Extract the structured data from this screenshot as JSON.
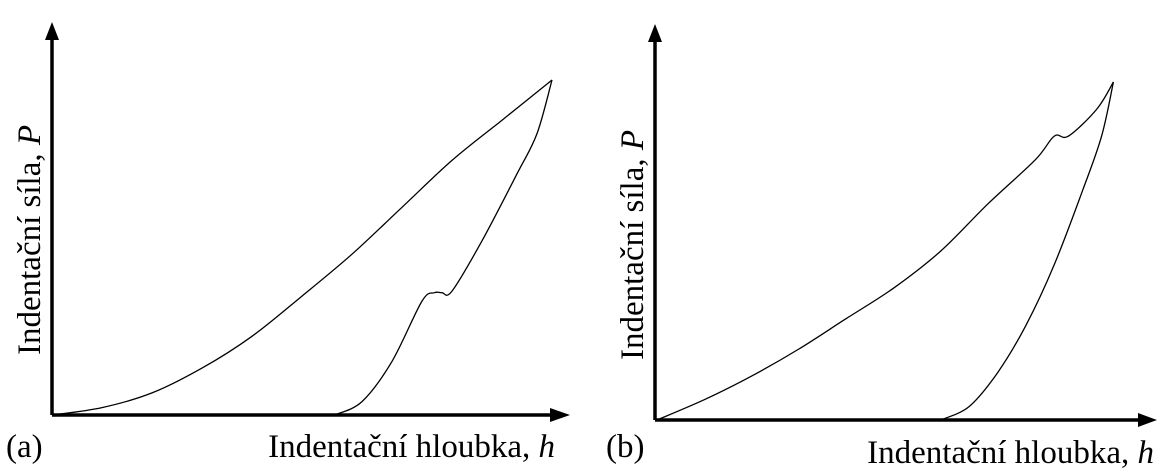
{
  "chart_data": [
    {
      "type": "line",
      "panel_label": "(a)",
      "xlabel_text": "Indentační hloubka, ",
      "xlabel_var": "h",
      "ylabel_text": "Indentační síla, ",
      "ylabel_var": "P",
      "xlim": [
        0,
        1
      ],
      "ylim": [
        0,
        1
      ],
      "grid": false,
      "series": [
        {
          "role": "loading",
          "points": [
            [
              0,
              0
            ],
            [
              0.1,
              0.022
            ],
            [
              0.2,
              0.066
            ],
            [
              0.3,
              0.14
            ],
            [
              0.4,
              0.235
            ],
            [
              0.5,
              0.355
            ],
            [
              0.6,
              0.48
            ],
            [
              0.7,
              0.62
            ],
            [
              0.8,
              0.76
            ],
            [
              0.9,
              0.88
            ],
            [
              1,
              1
            ]
          ]
        },
        {
          "role": "unloading",
          "points": [
            [
              0.565,
              0
            ],
            [
              0.62,
              0.04
            ],
            [
              0.68,
              0.16
            ],
            [
              0.74,
              0.34
            ],
            [
              0.765,
              0.365
            ],
            [
              0.78,
              0.365
            ],
            [
              0.8,
              0.37
            ],
            [
              0.86,
              0.52
            ],
            [
              0.93,
              0.72
            ],
            [
              0.97,
              0.84
            ],
            [
              1,
              1
            ]
          ]
        }
      ]
    },
    {
      "type": "line",
      "panel_label": "(b)",
      "xlabel_text": "Indentační hloubka, ",
      "xlabel_var": "h",
      "ylabel_text": "Indentační síla, ",
      "ylabel_var": "P",
      "xlim": [
        0,
        1
      ],
      "ylim": [
        0,
        1
      ],
      "grid": false,
      "series": [
        {
          "role": "loading",
          "points": [
            [
              0,
              0
            ],
            [
              0.1,
              0.06
            ],
            [
              0.2,
              0.13
            ],
            [
              0.3,
              0.21
            ],
            [
              0.4,
              0.3
            ],
            [
              0.5,
              0.39
            ],
            [
              0.6,
              0.5
            ],
            [
              0.7,
              0.64
            ],
            [
              0.8,
              0.77
            ],
            [
              0.84,
              0.84
            ],
            [
              0.87,
              0.84
            ],
            [
              0.93,
              0.92
            ],
            [
              0.965,
              1
            ]
          ]
        },
        {
          "role": "unloading",
          "points": [
            [
              0.6,
              0
            ],
            [
              0.66,
              0.04
            ],
            [
              0.72,
              0.14
            ],
            [
              0.78,
              0.28
            ],
            [
              0.84,
              0.46
            ],
            [
              0.9,
              0.68
            ],
            [
              0.94,
              0.84
            ],
            [
              0.965,
              1
            ]
          ]
        }
      ]
    }
  ]
}
